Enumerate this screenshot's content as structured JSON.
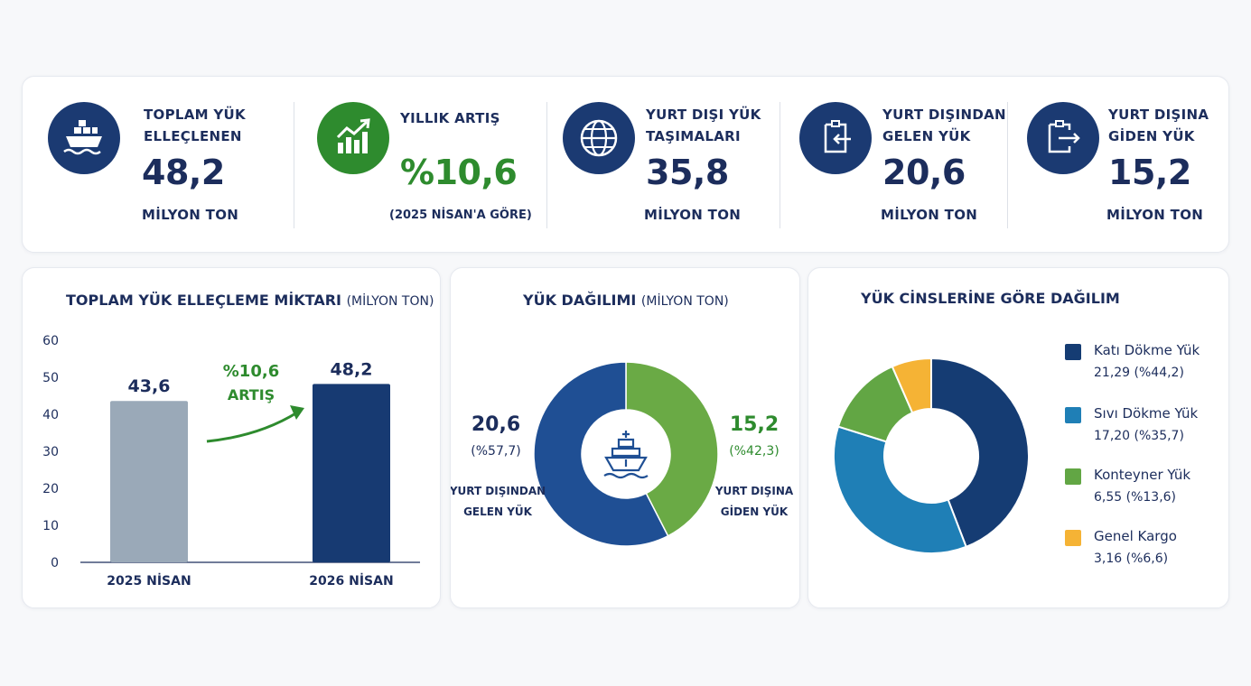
{
  "kpis": [
    {
      "label_line1": "TOPLAM YÜK",
      "label_line2": "ELLEÇLENEN",
      "value": "48,2",
      "unit": "MİLYON TON",
      "icon": "cargo-ship-icon",
      "color": "#1b3a72"
    },
    {
      "label_line1": "YILLIK ARTIŞ",
      "label_line2": "",
      "value": "%10,6",
      "unit": "(2025 NİSAN'A GÖRE)",
      "icon": "growth-chart-icon",
      "color": "#2e8b2e"
    },
    {
      "label_line1": "YURT DIŞI YÜK",
      "label_line2": "TAŞIMALARI",
      "value": "35,8",
      "unit": "MİLYON TON",
      "icon": "globe-icon",
      "color": "#1b3a72"
    },
    {
      "label_line1": "YURT DIŞINDAN",
      "label_line2": "GELEN YÜK",
      "value": "20,6",
      "unit": "MİLYON TON",
      "icon": "inbound-icon",
      "color": "#1b3a72"
    },
    {
      "label_line1": "YURT DIŞINA",
      "label_line2": "GİDEN YÜK",
      "value": "15,2",
      "unit": "MİLYON TON",
      "icon": "outbound-icon",
      "color": "#1b3a72"
    }
  ],
  "chart_data": [
    {
      "type": "bar",
      "title": "TOPLAM YÜK ELLEÇLEME MİKTARI",
      "title_sub": "(MİLYON TON)",
      "categories": [
        "2025 NİSAN",
        "2026 NİSAN"
      ],
      "values": [
        43.6,
        48.2
      ],
      "value_labels": [
        "43,6",
        "48,2"
      ],
      "colors": [
        "#9aa9b8",
        "#173a72"
      ],
      "ylim": [
        0,
        60
      ],
      "yticks": [
        "0",
        "10",
        "20",
        "30",
        "40",
        "50",
        "60"
      ],
      "annotation_line1": "%10,6",
      "annotation_line2": "ARTIŞ",
      "annotation_color": "#2e8b2e",
      "grid": false
    },
    {
      "type": "pie",
      "title": "YÜK DAĞILIMI",
      "title_sub": "(MİLYON TON)",
      "center_icon": "ship-icon",
      "slices": [
        {
          "value": 20.6,
          "value_label": "20,6",
          "percent_label": "(%57,7)",
          "name_line1": "YURT DIŞINDAN",
          "name_line2": "GELEN YÜK",
          "color": "#1f4f94",
          "text_color": "#1c2d5c"
        },
        {
          "value": 15.2,
          "value_label": "15,2",
          "percent_label": "(%42,3)",
          "name_line1": "YURT DIŞINA",
          "name_line2": "GİDEN YÜK",
          "color": "#6aaa45",
          "text_color": "#2e8b2e"
        }
      ]
    },
    {
      "type": "pie",
      "title": "YÜK CİNSLERİNE GÖRE DAĞILIM",
      "legend_position": "right",
      "slices": [
        {
          "name": "Katı Dökme Yük",
          "value": 21.29,
          "value_label": "21,29 (%44,2)",
          "color": "#153c73"
        },
        {
          "name": "Sıvı Dökme Yük",
          "value": 17.2,
          "value_label": "17,20 (%35,7)",
          "color": "#1f7fb6"
        },
        {
          "name": "Konteyner Yük",
          "value": 6.55,
          "value_label": "6,55 (%13,6)",
          "color": "#62a644"
        },
        {
          "name": "Genel Kargo",
          "value": 3.16,
          "value_label": "3,16 (%6,6)",
          "color": "#f5b335"
        }
      ]
    }
  ]
}
